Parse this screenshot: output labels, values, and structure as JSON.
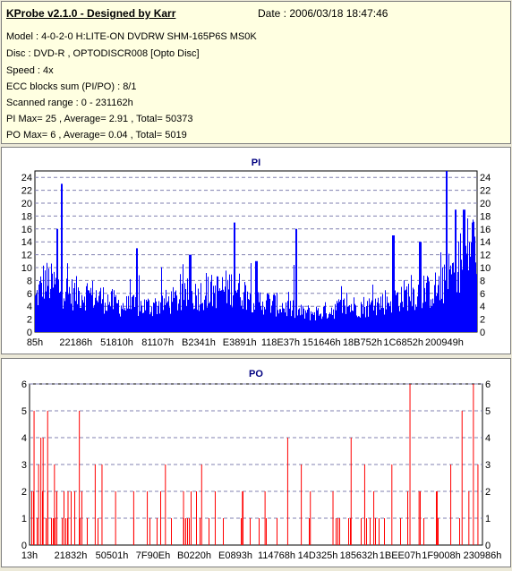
{
  "header": {
    "title": "KProbe v2.1.0 - Designed by Karr",
    "date": "Date : 2006/03/18 18:47:46",
    "lines": [
      "Model : 4-0-2-0 H:LITE-ON DVDRW SHM-165P6S MS0K",
      "Disc : DVD-R , OPTODISCR008 [Opto Disc]",
      "Speed : 4x",
      "ECC blocks sum (PI/PO) : 8/1",
      "Scanned range : 0 - 231162h",
      "PI Max= 25 , Average= 2.91 , Total= 50373",
      "PO Max= 6 , Average= 0.04 , Total= 5019"
    ]
  },
  "colors": {
    "pi": "#0000ff",
    "po": "#ff0000",
    "title": "#000080",
    "grid": "#8080b0"
  },
  "chart_data": [
    {
      "type": "bar",
      "title": "PI",
      "ylim": [
        0,
        25
      ],
      "yticks": [
        0,
        2,
        4,
        6,
        8,
        10,
        12,
        14,
        16,
        18,
        20,
        22,
        24
      ],
      "xticks": [
        "85h",
        "22186h",
        "51810h",
        "81107h",
        "B2341h",
        "E3891h",
        "118E37h",
        "151646h",
        "18B752h",
        "1C6852h",
        "200949h"
      ],
      "grid": true,
      "envelope": {
        "x": [
          0,
          0.02,
          0.05,
          0.08,
          0.12,
          0.2,
          0.26,
          0.32,
          0.38,
          0.45,
          0.5,
          0.56,
          0.6,
          0.64,
          0.7,
          0.76,
          0.8,
          0.85,
          0.88,
          0.92,
          0.95,
          0.98,
          1.0
        ],
        "y": [
          5,
          8,
          7,
          6,
          6,
          4,
          4,
          5,
          6,
          7,
          5,
          4,
          3,
          3,
          4,
          4,
          5,
          6,
          6,
          7,
          10,
          13,
          14
        ]
      },
      "peaks": [
        {
          "x": 0.06,
          "y": 23
        },
        {
          "x": 0.05,
          "y": 16
        },
        {
          "x": 0.23,
          "y": 13
        },
        {
          "x": 0.35,
          "y": 12
        },
        {
          "x": 0.45,
          "y": 17
        },
        {
          "x": 0.5,
          "y": 11
        },
        {
          "x": 0.59,
          "y": 16
        },
        {
          "x": 0.81,
          "y": 15
        },
        {
          "x": 0.87,
          "y": 14
        },
        {
          "x": 0.93,
          "y": 25
        },
        {
          "x": 0.95,
          "y": 19
        },
        {
          "x": 0.97,
          "y": 19
        },
        {
          "x": 0.99,
          "y": 17
        }
      ]
    },
    {
      "type": "bar",
      "title": "PO",
      "ylim": [
        0,
        6
      ],
      "yticks": [
        0,
        1,
        2,
        3,
        4,
        5,
        6
      ],
      "xticks": [
        "13h",
        "21832h",
        "50501h",
        "7F90Eh",
        "B0220h",
        "E0893h",
        "114768h",
        "14D325h",
        "185632h",
        "1BEE07h",
        "1F9008h",
        "230986h"
      ],
      "grid": true,
      "spikes": [
        {
          "x": 0.01,
          "y": 5
        },
        {
          "x": 0.02,
          "y": 3
        },
        {
          "x": 0.025,
          "y": 4
        },
        {
          "x": 0.03,
          "y": 4
        },
        {
          "x": 0.04,
          "y": 5
        },
        {
          "x": 0.055,
          "y": 3
        },
        {
          "x": 0.06,
          "y": 2
        },
        {
          "x": 0.085,
          "y": 2
        },
        {
          "x": 0.11,
          "y": 5
        },
        {
          "x": 0.145,
          "y": 3
        },
        {
          "x": 0.16,
          "y": 3
        },
        {
          "x": 0.19,
          "y": 2
        },
        {
          "x": 0.23,
          "y": 2
        },
        {
          "x": 0.26,
          "y": 2
        },
        {
          "x": 0.3,
          "y": 3
        },
        {
          "x": 0.34,
          "y": 2
        },
        {
          "x": 0.38,
          "y": 3
        },
        {
          "x": 0.41,
          "y": 2
        },
        {
          "x": 0.47,
          "y": 2
        },
        {
          "x": 0.52,
          "y": 2
        },
        {
          "x": 0.57,
          "y": 4
        },
        {
          "x": 0.6,
          "y": 3
        },
        {
          "x": 0.62,
          "y": 2
        },
        {
          "x": 0.67,
          "y": 2
        },
        {
          "x": 0.71,
          "y": 4
        },
        {
          "x": 0.74,
          "y": 3
        },
        {
          "x": 0.76,
          "y": 2
        },
        {
          "x": 0.8,
          "y": 3
        },
        {
          "x": 0.84,
          "y": 6
        },
        {
          "x": 0.86,
          "y": 2
        },
        {
          "x": 0.9,
          "y": 2
        },
        {
          "x": 0.93,
          "y": 3
        },
        {
          "x": 0.955,
          "y": 5
        },
        {
          "x": 0.97,
          "y": 2
        },
        {
          "x": 0.98,
          "y": 6
        },
        {
          "x": 0.99,
          "y": 3
        }
      ]
    }
  ]
}
